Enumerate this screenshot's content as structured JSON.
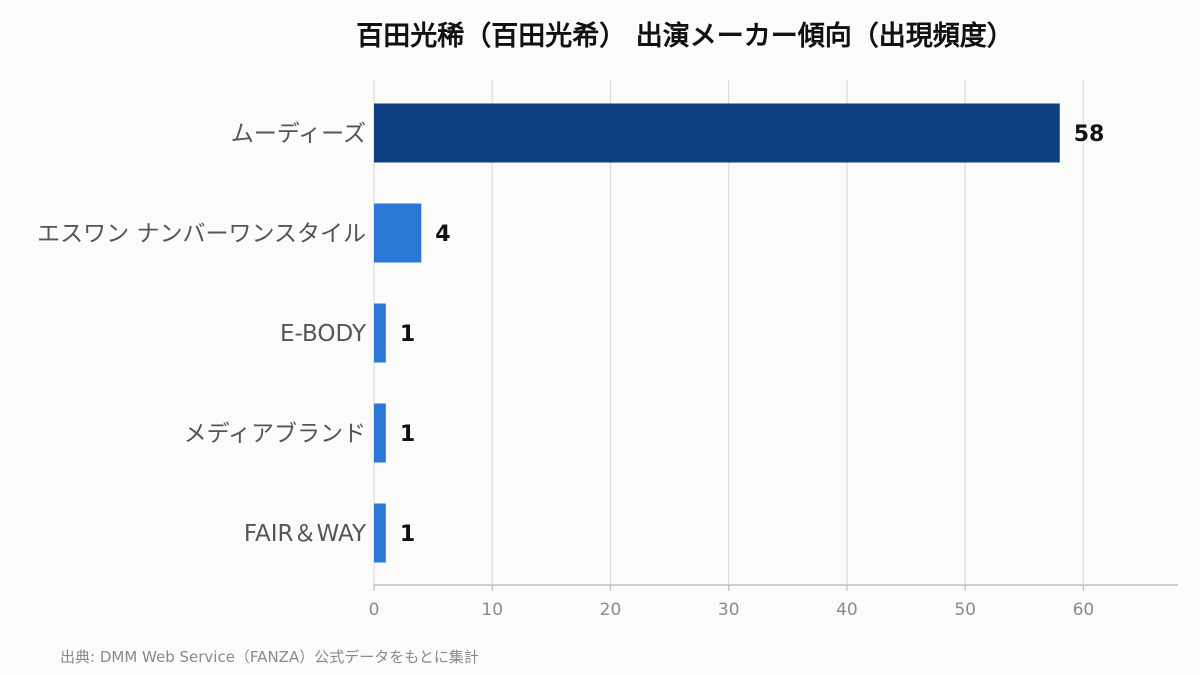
{
  "chart_data": {
    "type": "bar",
    "orientation": "horizontal",
    "title": "百田光稀（百田光希） 出演メーカー傾向（出現頻度）",
    "categories": [
      "ムーディーズ",
      "エスワン ナンバーワンスタイル",
      "E-BODY",
      "メディアブランド",
      "FAIR＆WAY"
    ],
    "values": [
      58,
      4,
      1,
      1,
      1
    ],
    "xlim": [
      0,
      68
    ],
    "xticks": [
      0,
      10,
      20,
      30,
      40,
      50,
      60
    ],
    "grid": true,
    "legend": "none",
    "data_labels": true
  },
  "colors": {
    "top_bar": "#0f4081",
    "bar": "#2a78d6",
    "grid": "#dcdcdc",
    "axis": "#c0c0c0",
    "tick_text": "#8a8a8a",
    "category_text": "#555555",
    "value_text": "#111111"
  },
  "source": "出典: DMM Web Service（FANZA）公式データをもとに集計"
}
